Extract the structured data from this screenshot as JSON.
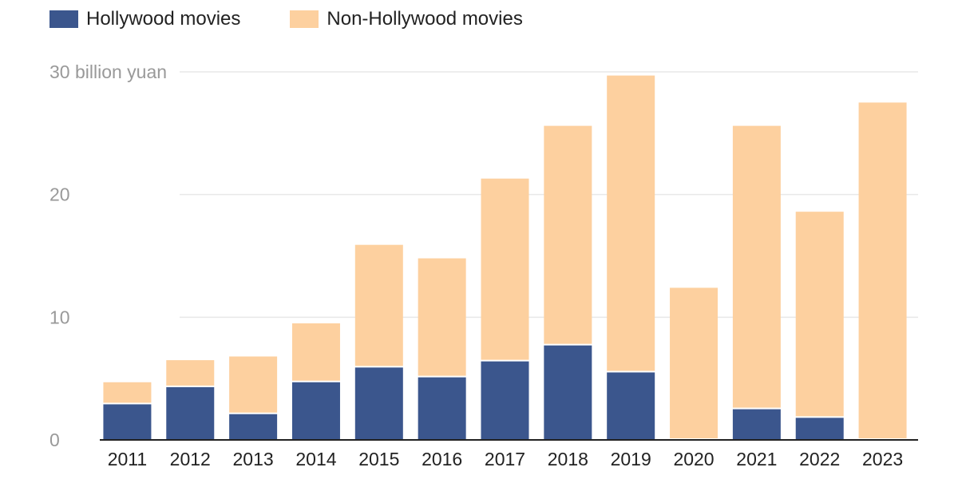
{
  "chart_data": {
    "type": "bar",
    "stacked": true,
    "title": "",
    "xlabel": "",
    "ylabel": "",
    "ylim": [
      0,
      30
    ],
    "y_ticks": [
      0,
      10,
      20,
      30
    ],
    "y_tick_labels": [
      "0",
      "10",
      "20",
      "30 billion yuan"
    ],
    "grid": true,
    "legend_position": "top-left",
    "categories": [
      "2011",
      "2012",
      "2013",
      "2014",
      "2015",
      "2016",
      "2017",
      "2018",
      "2019",
      "2020",
      "2021",
      "2022",
      "2023"
    ],
    "series": [
      {
        "name": "Hollywood movies",
        "color": "#3b568d",
        "values": [
          2.9,
          4.3,
          2.1,
          4.7,
          5.9,
          5.1,
          6.4,
          7.7,
          5.5,
          0,
          2.5,
          1.8,
          0
        ]
      },
      {
        "name": "Non-Hollywood movies",
        "color": "#fdd09f",
        "values": [
          1.8,
          2.2,
          4.7,
          4.8,
          10.0,
          9.7,
          14.9,
          17.9,
          24.2,
          12.4,
          23.1,
          16.8,
          27.5
        ]
      }
    ]
  }
}
